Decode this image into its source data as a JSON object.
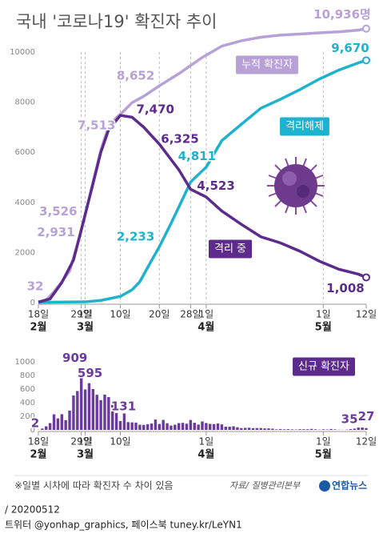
{
  "chart_data": [
    {
      "type": "line",
      "title": "국내 '코로나19' 확진자 추이",
      "xlim": [
        "02-18",
        "05-12"
      ],
      "ylim": [
        0,
        10000
      ],
      "yticks": [
        0,
        2000,
        4000,
        6000,
        8000,
        10000
      ],
      "xticks": [
        {
          "value": "02-18",
          "label": "18일"
        },
        {
          "value": "02-29",
          "label": "29일"
        },
        {
          "value": "03-01",
          "label": "1일"
        },
        {
          "value": "03-10",
          "label": "10일"
        },
        {
          "value": "03-20",
          "label": "20일"
        },
        {
          "value": "03-28",
          "label": "28일"
        },
        {
          "value": "04-01",
          "label": "1일"
        },
        {
          "value": "05-01",
          "label": "1일"
        },
        {
          "value": "05-12",
          "label": "12일"
        }
      ],
      "month_labels": [
        {
          "value": "02-18",
          "label": "2월"
        },
        {
          "value": "03-01",
          "label": "3월"
        },
        {
          "value": "04-01",
          "label": "4월"
        },
        {
          "value": "05-01",
          "label": "5월"
        }
      ],
      "series": [
        {
          "name": "누적 확진자",
          "color": "#b7a1d6",
          "x": [
            "02-18",
            "02-20",
            "02-22",
            "02-24",
            "02-26",
            "02-28",
            "02-29",
            "03-01",
            "03-03",
            "03-05",
            "03-07",
            "03-09",
            "03-10",
            "03-13",
            "03-16",
            "03-20",
            "03-25",
            "03-31",
            "04-05",
            "04-10",
            "04-15",
            "04-20",
            "04-25",
            "04-30",
            "05-05",
            "05-10",
            "05-12"
          ],
          "values": [
            32,
            104,
            433,
            833,
            1261,
            2337,
            2931,
            3526,
            4812,
            6088,
            7041,
            7382,
            7513,
            7979,
            8236,
            8652,
            9137,
            9786,
            10237,
            10450,
            10591,
            10674,
            10718,
            10765,
            10806,
            10874,
            10936
          ],
          "value_labels": [
            "32",
            null,
            null,
            null,
            null,
            null,
            "2,931",
            "3,526",
            null,
            null,
            null,
            null,
            "7,513",
            null,
            null,
            "8,652",
            null,
            null,
            null,
            null,
            null,
            null,
            null,
            null,
            null,
            null,
            "10,936명"
          ]
        },
        {
          "name": "격리해제",
          "color": "#1fb2cf",
          "x": [
            "02-18",
            "03-01",
            "03-05",
            "03-10",
            "03-13",
            "03-15",
            "03-17",
            "03-20",
            "03-23",
            "03-26",
            "03-28",
            "04-01",
            "04-05",
            "04-10",
            "04-15",
            "04-20",
            "04-25",
            "04-30",
            "05-05",
            "05-10",
            "05-12"
          ],
          "values": [
            12,
            30,
            88,
            247,
            510,
            834,
            1401,
            2233,
            3166,
            4144,
            4811,
            5408,
            6463,
            7117,
            7757,
            8114,
            8501,
            8922,
            9283,
            9568,
            9670
          ],
          "value_labels": [
            null,
            null,
            null,
            null,
            null,
            null,
            null,
            "2,233",
            null,
            null,
            "4,811",
            null,
            null,
            null,
            null,
            null,
            null,
            null,
            null,
            null,
            "9,670"
          ]
        },
        {
          "name": "격리 중",
          "color": "#5c2b8c",
          "x": [
            "02-18",
            "02-21",
            "02-24",
            "02-27",
            "02-29",
            "03-03",
            "03-05",
            "03-07",
            "03-10",
            "03-13",
            "03-16",
            "03-20",
            "03-25",
            "03-28",
            "04-01",
            "04-05",
            "04-10",
            "04-15",
            "04-20",
            "04-25",
            "04-30",
            "05-05",
            "05-10",
            "05-12"
          ],
          "values": [
            20,
            150,
            800,
            1700,
            2900,
            4750,
            6000,
            6900,
            7470,
            7400,
            7000,
            6325,
            5300,
            4523,
            4216,
            3654,
            3125,
            2627,
            2385,
            2052,
            1654,
            1332,
            1135,
            1008
          ],
          "value_labels": [
            null,
            null,
            null,
            null,
            null,
            null,
            null,
            null,
            "7,470",
            null,
            null,
            "6,325",
            null,
            "4,523",
            null,
            null,
            null,
            null,
            null,
            null,
            null,
            null,
            null,
            "1,008"
          ]
        }
      ]
    },
    {
      "type": "bar",
      "title": "신규 확진자",
      "color": "#6b3a9e",
      "xlim": [
        "02-18",
        "05-12"
      ],
      "ylim": [
        0,
        1000
      ],
      "yticks": [
        0,
        200,
        400,
        600,
        800,
        1000
      ],
      "xticks": [
        {
          "value": "02-18",
          "label": "18일"
        },
        {
          "value": "02-29",
          "label": "29일"
        },
        {
          "value": "03-01",
          "label": "1일"
        },
        {
          "value": "03-10",
          "label": "10일"
        },
        {
          "value": "04-01",
          "label": "1일"
        },
        {
          "value": "05-01",
          "label": "1일"
        },
        {
          "value": "05-12",
          "label": "12일"
        }
      ],
      "month_labels": [
        {
          "value": "02-18",
          "label": "2월"
        },
        {
          "value": "03-01",
          "label": "3월"
        },
        {
          "value": "04-01",
          "label": "4월"
        },
        {
          "value": "05-01",
          "label": "5월"
        }
      ],
      "x": [
        "02-18",
        "02-19",
        "02-20",
        "02-21",
        "02-22",
        "02-23",
        "02-24",
        "02-25",
        "02-26",
        "02-27",
        "02-28",
        "02-29",
        "03-01",
        "03-02",
        "03-03",
        "03-04",
        "03-05",
        "03-06",
        "03-07",
        "03-08",
        "03-09",
        "03-10",
        "03-11",
        "03-12",
        "03-13",
        "03-14",
        "03-15",
        "03-16",
        "03-17",
        "03-18",
        "03-19",
        "03-20",
        "03-21",
        "03-22",
        "03-23",
        "03-24",
        "03-25",
        "03-26",
        "03-27",
        "03-28",
        "03-29",
        "03-30",
        "03-31",
        "04-01",
        "04-02",
        "04-03",
        "04-04",
        "04-05",
        "04-06",
        "04-07",
        "04-08",
        "04-09",
        "04-10",
        "04-11",
        "04-12",
        "04-13",
        "04-14",
        "04-15",
        "04-16",
        "04-17",
        "04-18",
        "04-19",
        "04-20",
        "04-21",
        "04-22",
        "04-23",
        "04-24",
        "04-25",
        "04-26",
        "04-27",
        "04-28",
        "04-29",
        "04-30",
        "05-01",
        "05-02",
        "05-03",
        "05-04",
        "05-05",
        "05-06",
        "05-07",
        "05-08",
        "05-09",
        "05-10",
        "05-11",
        "05-12"
      ],
      "values": [
        2,
        20,
        53,
        100,
        229,
        169,
        231,
        144,
        284,
        505,
        571,
        909,
        595,
        686,
        600,
        516,
        438,
        518,
        483,
        367,
        248,
        131,
        242,
        114,
        110,
        107,
        76,
        74,
        84,
        93,
        152,
        87,
        147,
        98,
        64,
        76,
        100,
        104,
        91,
        146,
        105,
        78,
        125,
        101,
        89,
        86,
        94,
        81,
        47,
        47,
        53,
        39,
        27,
        30,
        32,
        25,
        27,
        27,
        22,
        22,
        18,
        8,
        13,
        9,
        11,
        8,
        6,
        10,
        10,
        10,
        14,
        9,
        4,
        9,
        6,
        13,
        8,
        3,
        2,
        4,
        12,
        18,
        34,
        35,
        27
      ],
      "value_labels": [
        "2",
        null,
        null,
        null,
        null,
        null,
        null,
        null,
        null,
        null,
        null,
        "909",
        "595",
        null,
        null,
        null,
        null,
        null,
        null,
        null,
        null,
        "131",
        null,
        null,
        null,
        null,
        null,
        null,
        null,
        null,
        null,
        null,
        null,
        null,
        null,
        null,
        null,
        null,
        null,
        null,
        null,
        null,
        null,
        null,
        null,
        null,
        null,
        null,
        null,
        null,
        null,
        null,
        null,
        null,
        null,
        null,
        null,
        null,
        null,
        null,
        null,
        null,
        null,
        null,
        null,
        null,
        null,
        null,
        null,
        null,
        null,
        null,
        null,
        null,
        null,
        null,
        null,
        null,
        null,
        null,
        null,
        null,
        null,
        "35",
        "27"
      ]
    }
  ],
  "footer": {
    "note": "※일별 시차에 따라 확진자 수 차이 있음",
    "source": "자료/ 질병관리본부",
    "logo": "연합뉴스",
    "date": "/ 20200512",
    "social": "트위터 @yonhap_graphics, 페이스북 tuney.kr/LeYN1"
  }
}
